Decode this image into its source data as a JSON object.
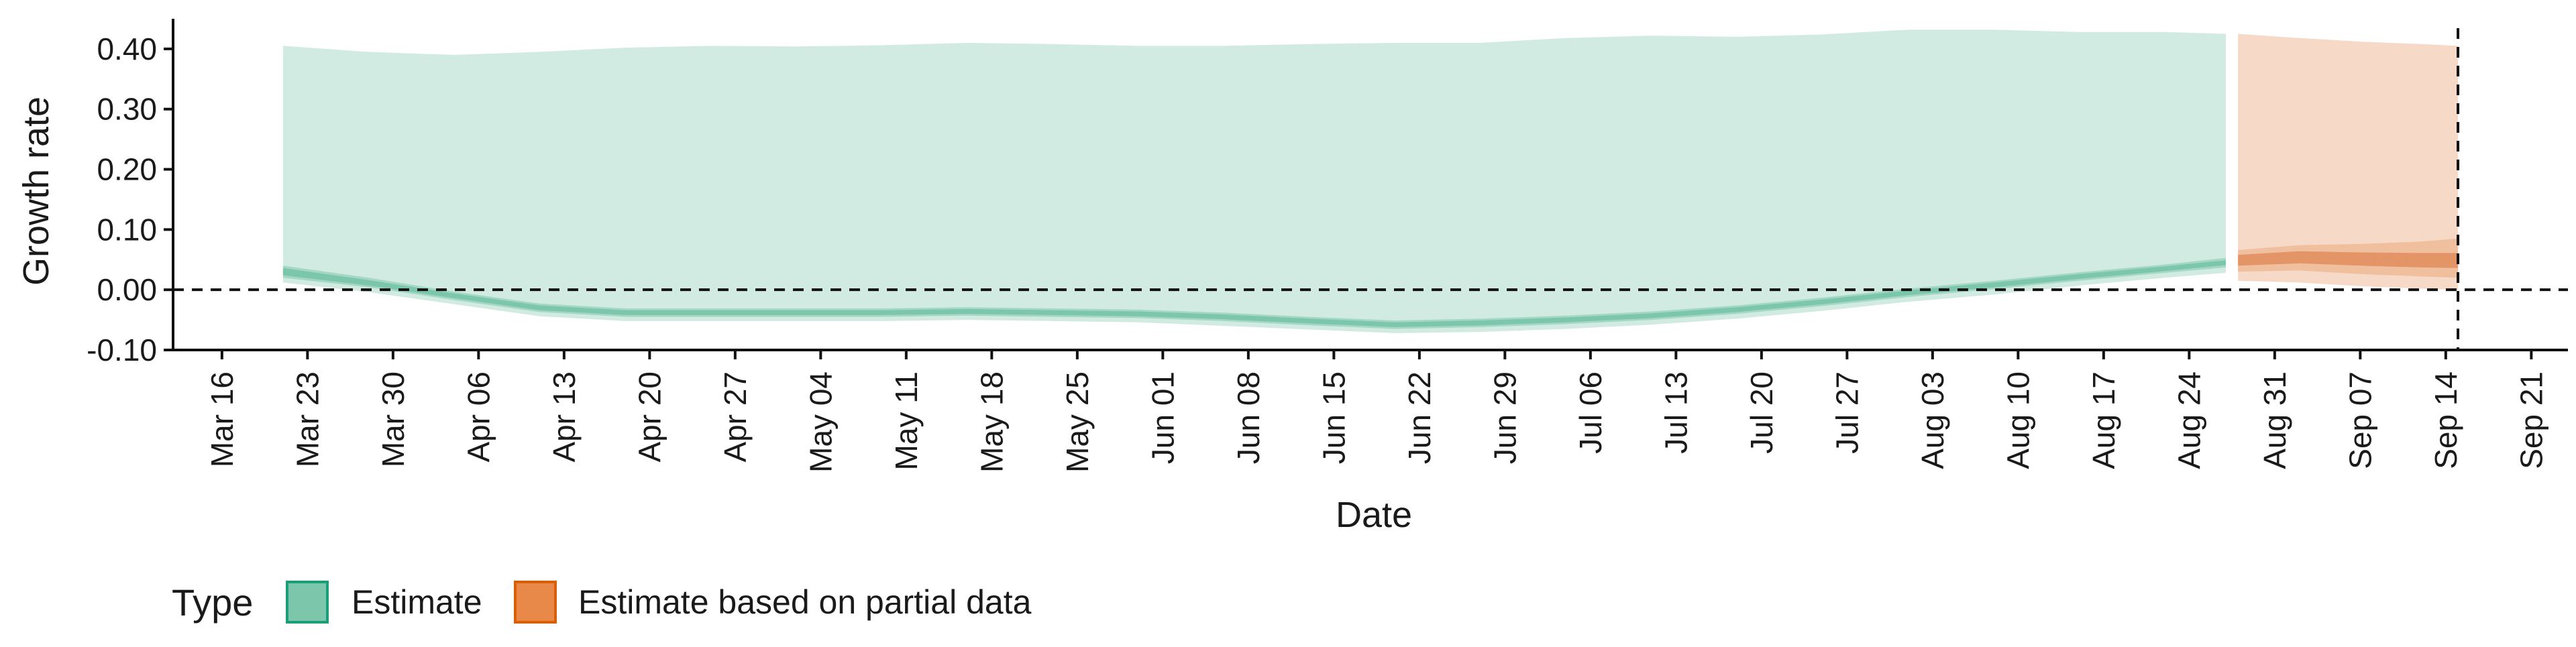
{
  "chart_data": {
    "type": "area",
    "title": "",
    "xlabel": "Date",
    "ylabel": "Growth rate",
    "ylim": [
      -0.1,
      0.45
    ],
    "xlim": [
      "2020-03-12",
      "2020-09-24"
    ],
    "y_ticks": [
      -0.1,
      0.0,
      0.1,
      0.2,
      0.3,
      0.4
    ],
    "y_tick_labels": [
      "-0.10",
      "0.00",
      "0.10",
      "0.20",
      "0.30",
      "0.40"
    ],
    "x_tick_dates": [
      "2020-03-16",
      "2020-03-23",
      "2020-03-30",
      "2020-04-06",
      "2020-04-13",
      "2020-04-20",
      "2020-04-27",
      "2020-05-04",
      "2020-05-11",
      "2020-05-18",
      "2020-05-25",
      "2020-06-01",
      "2020-06-08",
      "2020-06-15",
      "2020-06-22",
      "2020-06-29",
      "2020-07-06",
      "2020-07-13",
      "2020-07-20",
      "2020-07-27",
      "2020-08-03",
      "2020-08-10",
      "2020-08-17",
      "2020-08-24",
      "2020-08-31",
      "2020-09-07",
      "2020-09-14",
      "2020-09-21"
    ],
    "x_tick_labels": [
      "Mar 16",
      "Mar 23",
      "Mar 30",
      "Apr 06",
      "Apr 13",
      "Apr 20",
      "Apr 27",
      "May 04",
      "May 11",
      "May 18",
      "May 25",
      "Jun 01",
      "Jun 08",
      "Jun 15",
      "Jun 22",
      "Jun 29",
      "Jul 06",
      "Jul 13",
      "Jul 20",
      "Jul 27",
      "Aug 03",
      "Aug 10",
      "Aug 17",
      "Aug 24",
      "Aug 31",
      "Sep 07",
      "Sep 14",
      "Sep 21"
    ],
    "reference_lines": {
      "hline_y": 0.0,
      "vline_date": "2020-09-15"
    },
    "grid": false,
    "legend": {
      "title": "Type",
      "position": "bottom-left",
      "entries": [
        {
          "label": "Estimate",
          "color": "#66c2a5"
        },
        {
          "label": "Estimate based on partial data",
          "color": "#e8894a"
        }
      ]
    },
    "series": [
      {
        "name": "Estimate",
        "color": "#1b9e77",
        "fill_outer": "#d2ebe2",
        "fill_mid": "#a4d8c5",
        "fill_inner": "#7cc7ab",
        "points": [
          {
            "x": "2020-03-21",
            "median": 0.03,
            "lo20": 0.024,
            "hi20": 0.036,
            "lo50": 0.02,
            "hi50": 0.04,
            "lo90": 0.012,
            "hi90": 0.405
          },
          {
            "x": "2020-03-28",
            "median": 0.012,
            "lo20": 0.007,
            "hi20": 0.016,
            "lo50": 0.004,
            "hi50": 0.02,
            "lo90": -0.004,
            "hi90": 0.395
          },
          {
            "x": "2020-04-04",
            "median": -0.01,
            "lo20": -0.014,
            "hi20": -0.006,
            "lo50": -0.017,
            "hi50": -0.003,
            "lo90": -0.024,
            "hi90": 0.39
          },
          {
            "x": "2020-04-11",
            "median": -0.03,
            "lo20": -0.034,
            "hi20": -0.026,
            "lo50": -0.037,
            "hi50": -0.023,
            "lo90": -0.044,
            "hi90": 0.395
          },
          {
            "x": "2020-04-18",
            "median": -0.038,
            "lo20": -0.042,
            "hi20": -0.034,
            "lo50": -0.045,
            "hi50": -0.031,
            "lo90": -0.052,
            "hi90": 0.402
          },
          {
            "x": "2020-04-25",
            "median": -0.038,
            "lo20": -0.042,
            "hi20": -0.034,
            "lo50": -0.045,
            "hi50": -0.031,
            "lo90": -0.052,
            "hi90": 0.405
          },
          {
            "x": "2020-05-02",
            "median": -0.038,
            "lo20": -0.042,
            "hi20": -0.034,
            "lo50": -0.045,
            "hi50": -0.031,
            "lo90": -0.052,
            "hi90": 0.404
          },
          {
            "x": "2020-05-09",
            "median": -0.038,
            "lo20": -0.042,
            "hi20": -0.034,
            "lo50": -0.045,
            "hi50": -0.031,
            "lo90": -0.052,
            "hi90": 0.406
          },
          {
            "x": "2020-05-16",
            "median": -0.036,
            "lo20": -0.04,
            "hi20": -0.032,
            "lo50": -0.043,
            "hi50": -0.029,
            "lo90": -0.05,
            "hi90": 0.41
          },
          {
            "x": "2020-05-23",
            "median": -0.038,
            "lo20": -0.042,
            "hi20": -0.034,
            "lo50": -0.045,
            "hi50": -0.031,
            "lo90": -0.052,
            "hi90": 0.408
          },
          {
            "x": "2020-05-30",
            "median": -0.04,
            "lo20": -0.044,
            "hi20": -0.036,
            "lo50": -0.047,
            "hi50": -0.033,
            "lo90": -0.054,
            "hi90": 0.405
          },
          {
            "x": "2020-06-06",
            "median": -0.045,
            "lo20": -0.049,
            "hi20": -0.041,
            "lo50": -0.052,
            "hi50": -0.038,
            "lo90": -0.06,
            "hi90": 0.405
          },
          {
            "x": "2020-06-13",
            "median": -0.052,
            "lo20": -0.056,
            "hi20": -0.048,
            "lo50": -0.059,
            "hi50": -0.045,
            "lo90": -0.066,
            "hi90": 0.408
          },
          {
            "x": "2020-06-20",
            "median": -0.058,
            "lo20": -0.062,
            "hi20": -0.054,
            "lo50": -0.065,
            "hi50": -0.051,
            "lo90": -0.072,
            "hi90": 0.41
          },
          {
            "x": "2020-06-27",
            "median": -0.055,
            "lo20": -0.059,
            "hi20": -0.051,
            "lo50": -0.062,
            "hi50": -0.048,
            "lo90": -0.07,
            "hi90": 0.41
          },
          {
            "x": "2020-07-04",
            "median": -0.05,
            "lo20": -0.054,
            "hi20": -0.046,
            "lo50": -0.057,
            "hi50": -0.043,
            "lo90": -0.065,
            "hi90": 0.418
          },
          {
            "x": "2020-07-11",
            "median": -0.043,
            "lo20": -0.047,
            "hi20": -0.039,
            "lo50": -0.05,
            "hi50": -0.036,
            "lo90": -0.058,
            "hi90": 0.422
          },
          {
            "x": "2020-07-18",
            "median": -0.033,
            "lo20": -0.037,
            "hi20": -0.029,
            "lo50": -0.04,
            "hi50": -0.026,
            "lo90": -0.048,
            "hi90": 0.42
          },
          {
            "x": "2020-07-25",
            "median": -0.02,
            "lo20": -0.024,
            "hi20": -0.016,
            "lo50": -0.027,
            "hi50": -0.013,
            "lo90": -0.035,
            "hi90": 0.424
          },
          {
            "x": "2020-08-01",
            "median": -0.005,
            "lo20": -0.009,
            "hi20": -0.001,
            "lo50": -0.012,
            "hi50": 0.002,
            "lo90": -0.02,
            "hi90": 0.432
          },
          {
            "x": "2020-08-08",
            "median": 0.008,
            "lo20": 0.004,
            "hi20": 0.012,
            "lo50": 0.001,
            "hi50": 0.015,
            "lo90": -0.008,
            "hi90": 0.432
          },
          {
            "x": "2020-08-15",
            "median": 0.022,
            "lo20": 0.018,
            "hi20": 0.026,
            "lo50": 0.015,
            "hi50": 0.029,
            "lo90": 0.007,
            "hi90": 0.428
          },
          {
            "x": "2020-08-22",
            "median": 0.035,
            "lo20": 0.031,
            "hi20": 0.039,
            "lo50": 0.028,
            "hi50": 0.042,
            "lo90": 0.02,
            "hi90": 0.428
          },
          {
            "x": "2020-08-27",
            "median": 0.045,
            "lo20": 0.041,
            "hi20": 0.049,
            "lo50": 0.037,
            "hi50": 0.053,
            "lo90": 0.028,
            "hi90": 0.425
          }
        ]
      },
      {
        "name": "Estimate based on partial data",
        "color": "#d95f02",
        "fill_outer": "#f6d9c6",
        "fill_mid": "#efbf9e",
        "fill_inner": "#e39567",
        "points": [
          {
            "x": "2020-08-28",
            "median": 0.05,
            "lo20": 0.04,
            "hi20": 0.058,
            "lo50": 0.03,
            "hi50": 0.066,
            "lo90": 0.015,
            "hi90": 0.425
          },
          {
            "x": "2020-09-02",
            "median": 0.055,
            "lo20": 0.044,
            "hi20": 0.064,
            "lo50": 0.032,
            "hi50": 0.074,
            "lo90": 0.012,
            "hi90": 0.418
          },
          {
            "x": "2020-09-07",
            "median": 0.052,
            "lo20": 0.04,
            "hi20": 0.062,
            "lo50": 0.026,
            "hi50": 0.076,
            "lo90": 0.006,
            "hi90": 0.412
          },
          {
            "x": "2020-09-12",
            "median": 0.05,
            "lo20": 0.037,
            "hi20": 0.061,
            "lo50": 0.022,
            "hi50": 0.08,
            "lo90": 0.002,
            "hi90": 0.408
          },
          {
            "x": "2020-09-15",
            "median": 0.05,
            "lo20": 0.036,
            "hi20": 0.061,
            "lo50": 0.02,
            "hi50": 0.085,
            "lo90": 0.0,
            "hi90": 0.405
          }
        ]
      }
    ]
  }
}
